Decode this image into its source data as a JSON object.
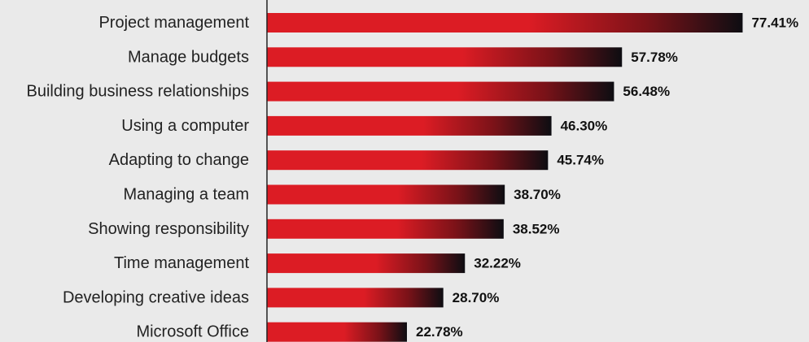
{
  "chart_data": {
    "type": "bar",
    "orientation": "horizontal",
    "categories": [
      "Project management",
      "Manage budgets",
      "Building business relationships",
      "Using a computer",
      "Adapting to change",
      "Managing a team",
      "Showing responsibility",
      "Time management",
      "Developing creative ideas",
      "Microsoft Office"
    ],
    "values": [
      77.41,
      57.78,
      56.48,
      46.3,
      45.74,
      38.7,
      38.52,
      32.22,
      28.7,
      22.78
    ],
    "value_labels": [
      "77.41%",
      "57.78%",
      "56.48%",
      "46.30%",
      "45.74%",
      "38.70%",
      "38.52%",
      "32.22%",
      "28.70%",
      "22.78%"
    ],
    "xlim": [
      0,
      100
    ],
    "grid": false,
    "legend": "none",
    "colors": {
      "bar_start": "#dc1c24",
      "bar_end": "#0d0d12",
      "background": "#eaeaea",
      "axis": "#222222",
      "text": "#222222"
    }
  }
}
